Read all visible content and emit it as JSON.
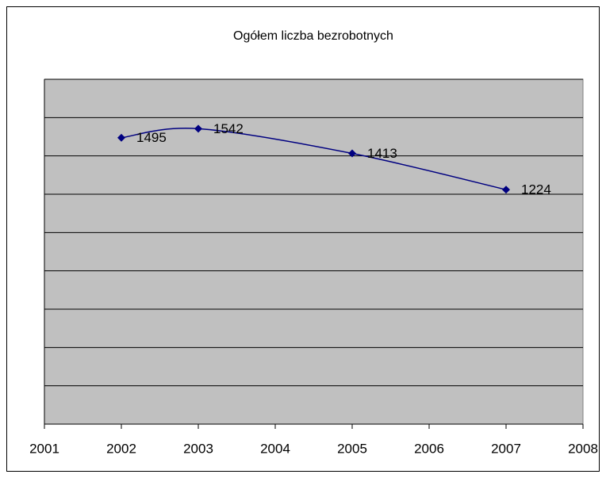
{
  "chart_data": {
    "type": "line",
    "title": "Ogółem liczba bezrobotnych",
    "x": [
      2002,
      2003,
      2005,
      2007
    ],
    "series": [
      {
        "name": "Ogółem",
        "color": "#000080",
        "values": [
          1495,
          1542,
          1413,
          1224
        ]
      }
    ],
    "xlim": [
      2001,
      2008
    ],
    "xticks": [
      2001,
      2002,
      2003,
      2004,
      2005,
      2006,
      2007,
      2008
    ],
    "ylim": [
      0,
      1800
    ],
    "yticks": [
      0,
      200,
      400,
      600,
      800,
      1000,
      1200,
      1400,
      1600,
      1800
    ],
    "grid": true,
    "smooth": true,
    "plot_background": "#c0c0c0"
  }
}
